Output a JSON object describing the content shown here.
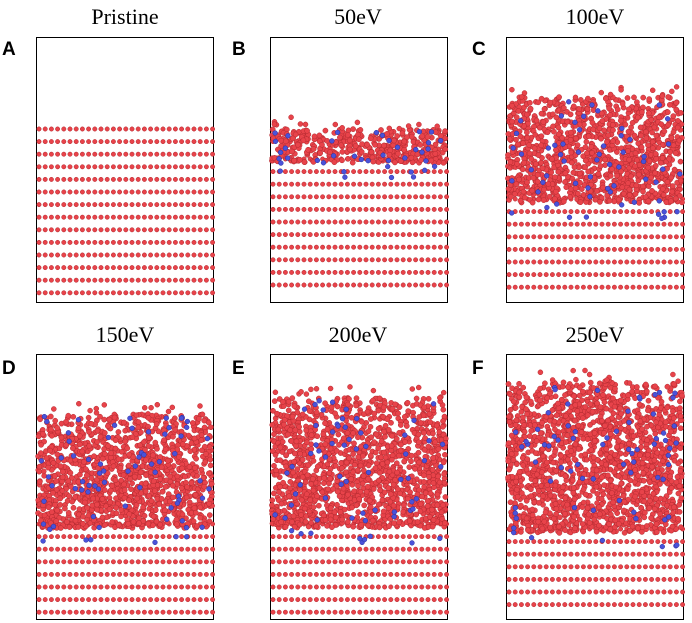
{
  "figure": {
    "panels": [
      {
        "letter": "A",
        "title": "Pristine"
      },
      {
        "letter": "B",
        "title": "50eV"
      },
      {
        "letter": "C",
        "title": "100eV"
      },
      {
        "letter": "D",
        "title": "150eV"
      },
      {
        "letter": "E",
        "title": "200eV"
      },
      {
        "letter": "F",
        "title": "250eV"
      }
    ],
    "colors": {
      "atom_substrate": "#e8434a",
      "atom_substrate_edge": "#b32a30",
      "atom_implanted": "#4a52d9",
      "box_border": "#000000"
    }
  }
}
